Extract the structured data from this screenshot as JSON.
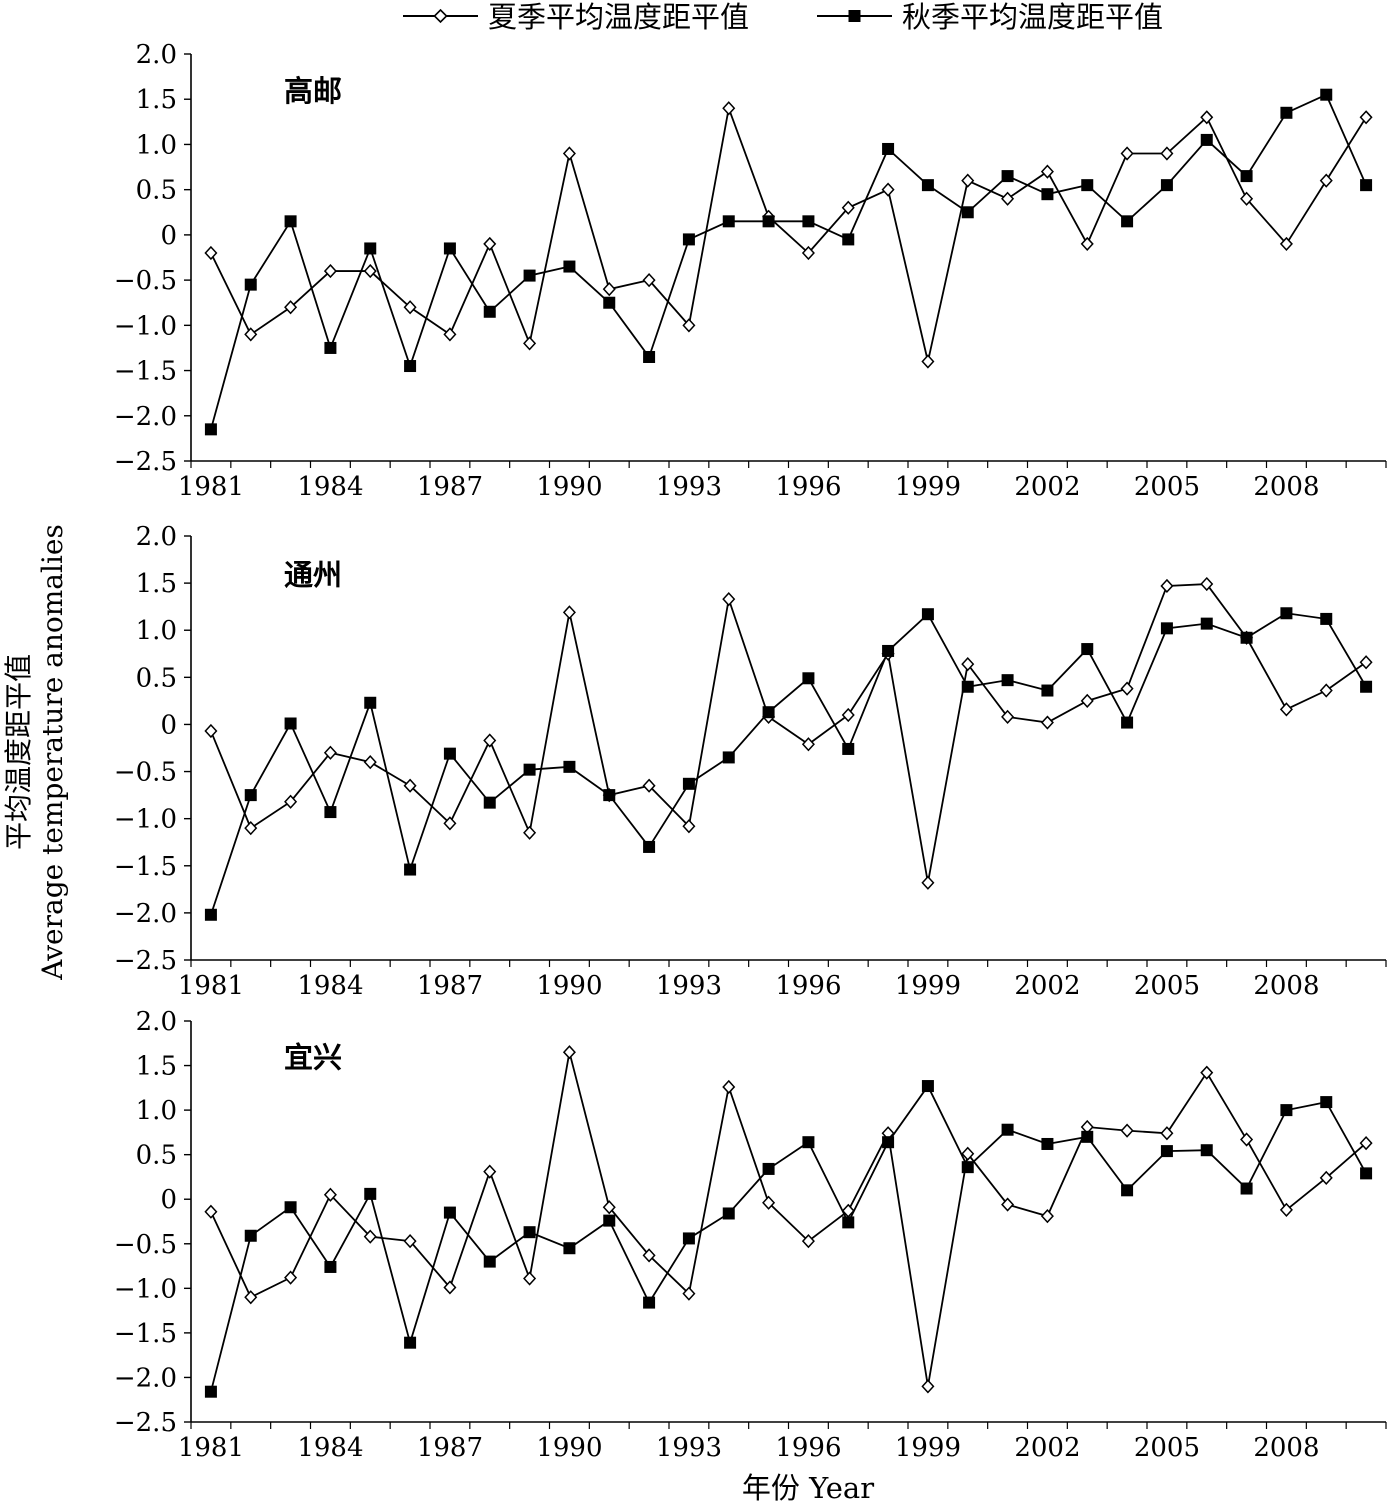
{
  "legend": {
    "summer_label": "夏季平均温度距平值",
    "autumn_label": "秋季平均温度距平值"
  },
  "ylabel_cn": "平均温度距平值",
  "ylabel_en": "Average temperature anomalies",
  "xlabel": "年份 Year",
  "colors": {
    "line": "#000000",
    "marker_fill_summer": "#ffffff",
    "marker_fill_autumn": "#000000"
  },
  "chart_data": [
    {
      "type": "line",
      "title": "高邮",
      "x": [
        1981,
        1982,
        1983,
        1984,
        1985,
        1986,
        1987,
        1988,
        1989,
        1990,
        1991,
        1992,
        1993,
        1994,
        1995,
        1996,
        1997,
        1998,
        1999,
        2000,
        2001,
        2002,
        2003,
        2004,
        2005,
        2006,
        2007,
        2008,
        2009,
        2010
      ],
      "xticks": [
        1981,
        1984,
        1987,
        1990,
        1993,
        1996,
        1999,
        2002,
        2005,
        2008
      ],
      "ylim": [
        -2.5,
        2.0
      ],
      "yticks": [
        2.0,
        1.5,
        1.0,
        0.5,
        0,
        -0.5,
        -1.0,
        -1.5,
        -2.0,
        -2.5
      ],
      "ytick_labels": [
        "2.0",
        "1.5",
        "1.0",
        "0.5",
        "0",
        "−0.5",
        "−1.0",
        "−1.5",
        "−2.0",
        "−2.5"
      ],
      "series": [
        {
          "name": "夏季平均温度距平值",
          "marker": "diamond",
          "values": [
            -0.2,
            -1.1,
            -0.8,
            -0.4,
            -0.4,
            -0.8,
            -1.1,
            -0.1,
            -1.2,
            0.9,
            -0.6,
            -0.5,
            -1.0,
            1.4,
            0.2,
            -0.2,
            0.3,
            0.5,
            -1.4,
            0.6,
            0.4,
            0.7,
            -0.1,
            0.9,
            0.9,
            1.3,
            0.4,
            -0.1,
            0.6,
            1.3
          ]
        },
        {
          "name": "秋季平均温度距平值",
          "marker": "square",
          "values": [
            -2.15,
            -0.55,
            0.15,
            -1.25,
            -0.15,
            -1.45,
            -0.15,
            -0.85,
            -0.45,
            -0.35,
            -0.75,
            -1.35,
            -0.05,
            0.15,
            0.15,
            0.15,
            -0.05,
            0.95,
            0.55,
            0.25,
            0.65,
            0.45,
            0.55,
            0.15,
            0.55,
            1.05,
            0.65,
            1.35,
            1.55,
            0.55
          ]
        }
      ]
    },
    {
      "type": "line",
      "title": "通州",
      "x": [
        1981,
        1982,
        1983,
        1984,
        1985,
        1986,
        1987,
        1988,
        1989,
        1990,
        1991,
        1992,
        1993,
        1994,
        1995,
        1996,
        1997,
        1998,
        1999,
        2000,
        2001,
        2002,
        2003,
        2004,
        2005,
        2006,
        2007,
        2008,
        2009,
        2010
      ],
      "xticks": [
        1981,
        1984,
        1987,
        1990,
        1993,
        1996,
        1999,
        2002,
        2005,
        2008
      ],
      "ylim": [
        -2.5,
        2.0
      ],
      "yticks": [
        2.0,
        1.5,
        1.0,
        0.5,
        0,
        -0.5,
        -1.0,
        -1.5,
        -2.0,
        -2.5
      ],
      "ytick_labels": [
        "2.0",
        "1.5",
        "1.0",
        "0.5",
        "0",
        "−0.5",
        "−1.0",
        "−1.5",
        "−2.0",
        "−2.5"
      ],
      "series": [
        {
          "name": "夏季平均温度距平值",
          "marker": "diamond",
          "values": [
            -0.07,
            -1.1,
            -0.82,
            -0.3,
            -0.4,
            -0.65,
            -1.05,
            -0.17,
            -1.15,
            1.19,
            -0.75,
            -0.65,
            -1.08,
            1.33,
            0.08,
            -0.21,
            0.1,
            0.75,
            -1.68,
            0.64,
            0.08,
            0.02,
            0.25,
            0.38,
            1.47,
            1.49,
            0.92,
            0.16,
            0.36,
            0.66
          ]
        },
        {
          "name": "秋季平均温度距平值",
          "marker": "square",
          "values": [
            -2.02,
            -0.75,
            0.01,
            -0.93,
            0.23,
            -1.54,
            -0.31,
            -0.83,
            -0.48,
            -0.45,
            -0.75,
            -1.3,
            -0.63,
            -0.35,
            0.13,
            0.49,
            -0.26,
            0.78,
            1.17,
            0.4,
            0.47,
            0.36,
            0.8,
            0.02,
            1.02,
            1.07,
            0.92,
            1.18,
            1.12,
            0.4
          ]
        }
      ]
    },
    {
      "type": "line",
      "title": "宜兴",
      "x": [
        1981,
        1982,
        1983,
        1984,
        1985,
        1986,
        1987,
        1988,
        1989,
        1990,
        1991,
        1992,
        1993,
        1994,
        1995,
        1996,
        1997,
        1998,
        1999,
        2000,
        2001,
        2002,
        2003,
        2004,
        2005,
        2006,
        2007,
        2008,
        2009,
        2010
      ],
      "xticks": [
        1981,
        1984,
        1987,
        1990,
        1993,
        1996,
        1999,
        2002,
        2005,
        2008
      ],
      "ylim": [
        -2.5,
        2.0
      ],
      "yticks": [
        2.0,
        1.5,
        1.0,
        0.5,
        0,
        -0.5,
        -1.0,
        -1.5,
        -2.0,
        -2.5
      ],
      "ytick_labels": [
        "2.0",
        "1.5",
        "1.0",
        "0.5",
        "0",
        "−0.5",
        "−1.0",
        "−1.5",
        "−2.0",
        "−2.5"
      ],
      "series": [
        {
          "name": "夏季平均温度距平值",
          "marker": "diamond",
          "values": [
            -0.14,
            -1.1,
            -0.88,
            0.05,
            -0.42,
            -0.47,
            -0.99,
            0.31,
            -0.89,
            1.65,
            -0.09,
            -0.63,
            -1.06,
            1.26,
            -0.04,
            -0.47,
            -0.13,
            0.74,
            -2.1,
            0.51,
            -0.06,
            -0.19,
            0.81,
            0.77,
            0.74,
            1.42,
            0.67,
            -0.12,
            0.24,
            0.63
          ]
        },
        {
          "name": "秋季平均温度距平值",
          "marker": "square",
          "values": [
            -2.16,
            -0.41,
            -0.09,
            -0.76,
            0.06,
            -1.61,
            -0.15,
            -0.7,
            -0.37,
            -0.55,
            -0.24,
            -1.16,
            -0.44,
            -0.16,
            0.34,
            0.64,
            -0.26,
            0.64,
            1.27,
            0.36,
            0.78,
            0.62,
            0.7,
            0.1,
            0.54,
            0.55,
            0.12,
            1.0,
            1.09,
            0.29
          ]
        }
      ]
    }
  ]
}
